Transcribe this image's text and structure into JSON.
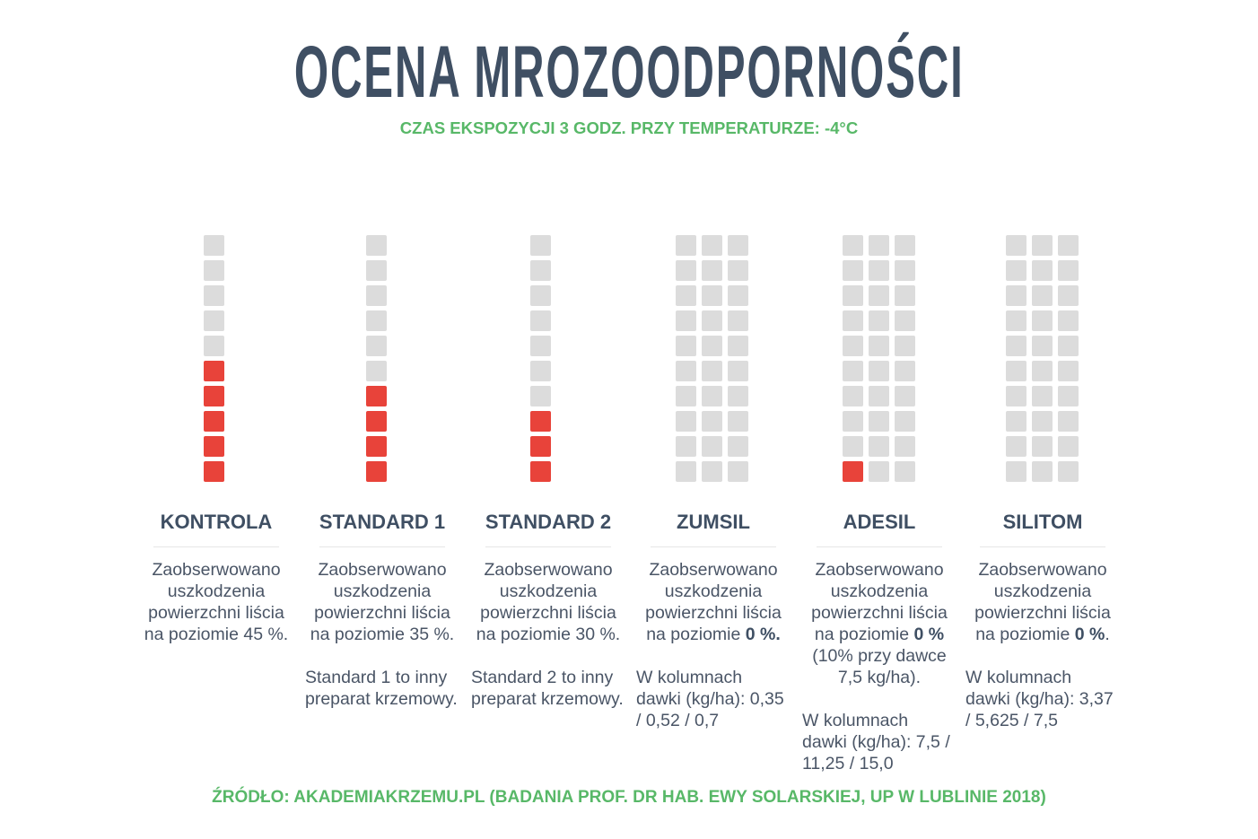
{
  "title": "OCENA MROZOODPORNOŚCI",
  "subtitle": "CZAS EKSPOZYCJI 3 GODZ. PRZY TEMPERATURZE: -4°C",
  "source": "ŹRÓDŁO: AKADEMIAKRZEMU.PL (BADANIA PROF. DR HAB. EWY SOLARSKIEJ, UP W LUBLINIE 2018)",
  "colors": {
    "damaged": "#e8433a",
    "undamaged": "#dcdcdc",
    "accent": "#58b868",
    "title": "#3f4f63"
  },
  "chart_data": {
    "type": "waffle",
    "rows": 10,
    "categories": [
      "KONTROLA",
      "STANDARD 1",
      "STANDARD 2",
      "ZUMSIL",
      "ADESIL",
      "SILITOM"
    ],
    "columns_per_category": [
      1,
      1,
      1,
      3,
      3,
      3
    ],
    "damaged_squares_per_column": [
      [
        5
      ],
      [
        4
      ],
      [
        3
      ],
      [
        0,
        0,
        0
      ],
      [
        1,
        0,
        0
      ],
      [
        0,
        0,
        0
      ]
    ],
    "damage_percent": [
      45,
      35,
      30,
      0,
      0,
      0
    ]
  },
  "panels": [
    {
      "name": "KONTROLA",
      "pre": "Zaobserwowano uszkodzenia powierzchni liścia na poziomie 45 %.",
      "bold": "",
      "post": "",
      "note": ""
    },
    {
      "name": "STANDARD 1",
      "pre": "Zaobserwowano uszkodzenia powierzchni liścia na poziomie 35 %.",
      "bold": "",
      "post": "",
      "note": "Standard 1 to inny preparat krzemowy."
    },
    {
      "name": "STANDARD 2",
      "pre": "Zaobserwowano uszkodzenia powierzchni liścia na poziomie 30 %.",
      "bold": "",
      "post": "",
      "note": "Standard 2 to inny preparat krzemowy."
    },
    {
      "name": "ZUMSIL",
      "pre": "Zaobserwowano uszkodzenia powierzchni liścia na poziomie ",
      "bold": "0 %.",
      "post": "",
      "note": "W kolumnach dawki (kg/ha): 0,35 / 0,52 / 0,7"
    },
    {
      "name": "ADESIL",
      "pre": "Zaobserwowano uszkodzenia powierzchni liścia na poziomie ",
      "bold": "0 %",
      "post": " (10% przy dawce 7,5 kg/ha).",
      "note": "W kolumnach dawki (kg/ha): 7,5 / 11,25 / 15,0"
    },
    {
      "name": "SILITOM",
      "pre": "Zaobserwowano uszkodzenia powierzchni liścia na poziomie ",
      "bold": "0 %",
      "post": ".",
      "note": "W kolumnach dawki (kg/ha): 3,37 / 5,625 / 7,5"
    }
  ]
}
